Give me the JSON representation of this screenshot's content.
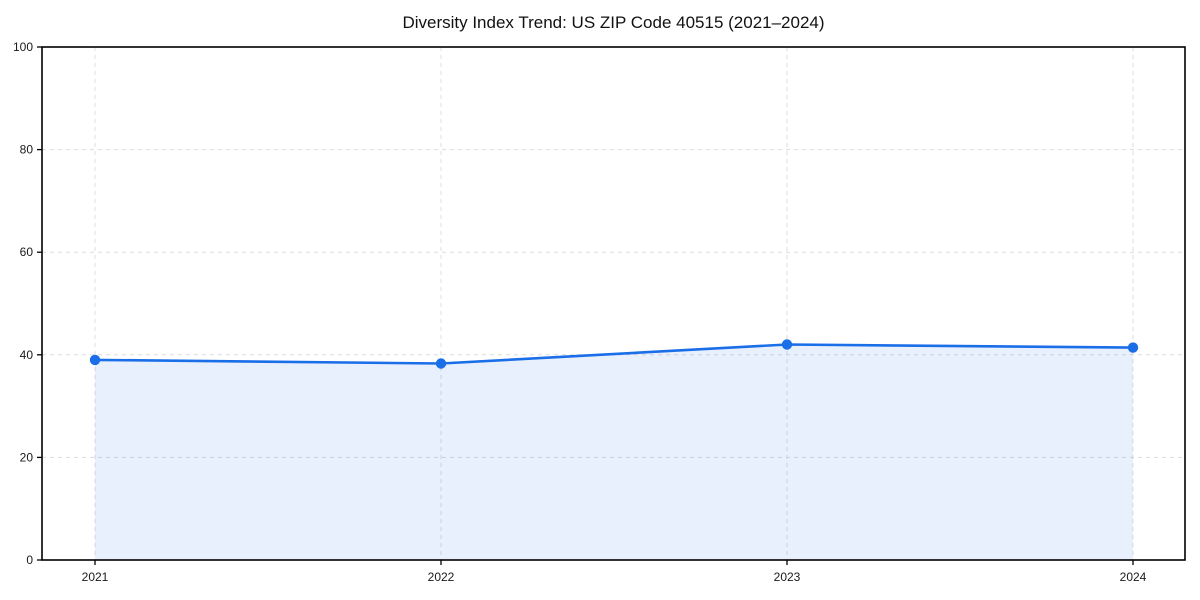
{
  "chart_data": {
    "type": "line",
    "title": "Diversity Index Trend: US ZIP Code 40515 (2021–2024)",
    "x": [
      "2021",
      "2022",
      "2023",
      "2024"
    ],
    "series": [
      {
        "name": "Diversity Index",
        "values": [
          39.0,
          38.3,
          42.0,
          41.4
        ]
      }
    ],
    "xlabel": "",
    "ylabel": "",
    "ylim": [
      0,
      100
    ],
    "yticks": [
      0,
      20,
      40,
      60,
      80,
      100
    ],
    "xticks": [
      "2021",
      "2022",
      "2023",
      "2024"
    ],
    "grid": true,
    "grid_style": "dashed",
    "legend_position": "none",
    "area_fill": true,
    "marker": "circle",
    "colors": {
      "line": "#1a6ee8",
      "marker": "#1a6ee8",
      "area_fill": "rgba(26,110,232,0.10)",
      "grid": "#dcdcdc",
      "axis": "#000000",
      "text": "#1a1a1a",
      "background": "#ffffff"
    }
  }
}
